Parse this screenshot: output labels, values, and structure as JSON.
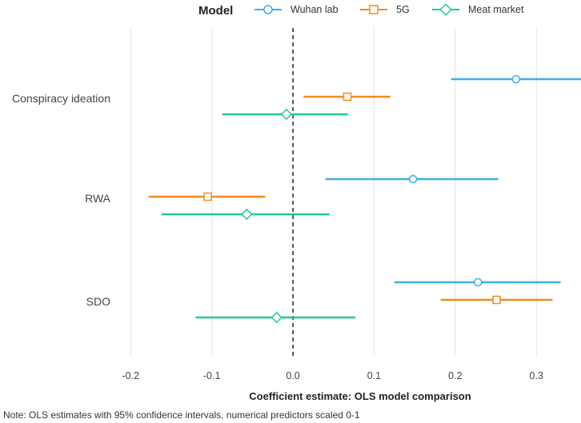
{
  "chart_data": {
    "type": "forest",
    "legend_title": "Model",
    "series": [
      {
        "name": "Wuhan lab",
        "color": "#3DAEE9",
        "marker": "circle",
        "points": [
          {
            "category": "Conspiracy ideation",
            "estimate": 0.275,
            "ci_low": 0.195,
            "ci_high": 0.355
          },
          {
            "category": "RWA",
            "estimate": 0.148,
            "ci_low": 0.04,
            "ci_high": 0.253
          },
          {
            "category": "SDO",
            "estimate": 0.228,
            "ci_low": 0.125,
            "ci_high": 0.33
          }
        ]
      },
      {
        "name": "5G",
        "color": "#F28B1E",
        "marker": "square",
        "points": [
          {
            "category": "Conspiracy ideation",
            "estimate": 0.067,
            "ci_low": 0.013,
            "ci_high": 0.12
          },
          {
            "category": "RWA",
            "estimate": -0.105,
            "ci_low": -0.178,
            "ci_high": -0.034
          },
          {
            "category": "SDO",
            "estimate": 0.251,
            "ci_low": 0.182,
            "ci_high": 0.32
          }
        ]
      },
      {
        "name": "Meat market",
        "color": "#1FCB95",
        "marker": "diamond",
        "points": [
          {
            "category": "Conspiracy ideation",
            "estimate": -0.008,
            "ci_low": -0.087,
            "ci_high": 0.068
          },
          {
            "category": "RWA",
            "estimate": -0.057,
            "ci_low": -0.162,
            "ci_high": 0.045
          },
          {
            "category": "SDO",
            "estimate": -0.02,
            "ci_low": -0.12,
            "ci_high": 0.077
          }
        ]
      }
    ],
    "categories": [
      "Conspiracy ideation",
      "RWA",
      "SDO"
    ],
    "xlim": [
      -0.22,
      0.355
    ],
    "xticks": [
      -0.2,
      -0.1,
      0.0,
      0.1,
      0.2,
      0.3
    ],
    "xtick_labels": [
      "-0.2",
      "-0.1",
      "0.0",
      "0.1",
      "0.2",
      "0.3"
    ],
    "reference_line": 0,
    "xlabel": "Coefficient estimate: OLS model comparison",
    "note": "Note: OLS estimates with 95% confidence intervals, numerical predictors scaled 0-1",
    "grid": true,
    "legend_position": "top"
  }
}
